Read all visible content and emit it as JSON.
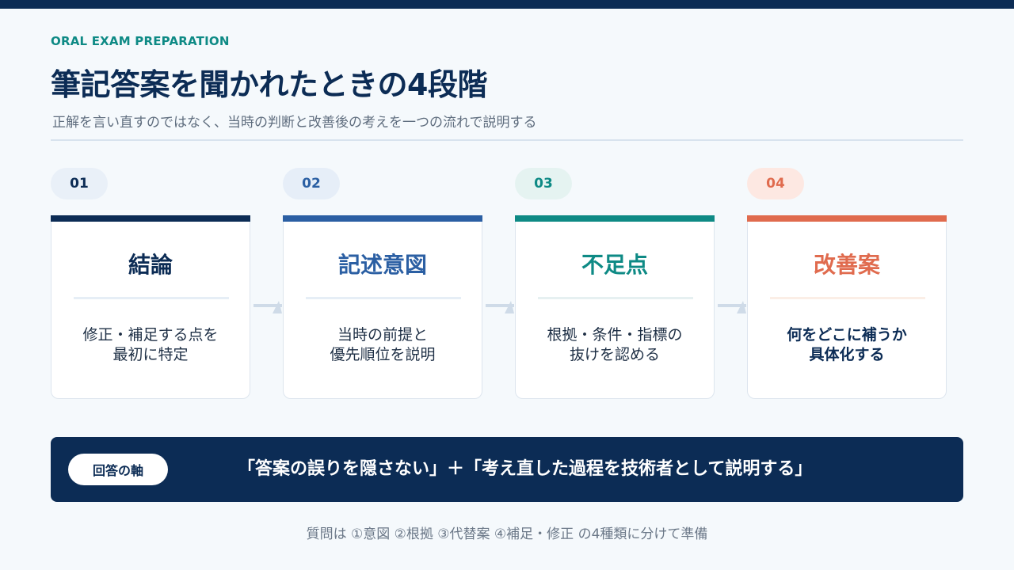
{
  "header": {
    "eyebrow": "ORAL EXAM PREPARATION",
    "title": "筆記答案を聞かれたときの4段階",
    "subtitle": "正解を言い直すのではなく、当時の判断と改善後の考えを一つの流れで説明する"
  },
  "steps": [
    {
      "number": "01",
      "title": "結論",
      "body_line1": "修正・補足する点を",
      "body_line2": "最初に特定",
      "accent": "#0c2c55",
      "badge_bg": "#e9f0f8",
      "line_color": "#e6eef6"
    },
    {
      "number": "02",
      "title": "記述意図",
      "body_line1": "当時の前提と",
      "body_line2": "優先順位を説明",
      "accent": "#2b5fa3",
      "badge_bg": "#e6eef8",
      "line_color": "#e6eef6"
    },
    {
      "number": "03",
      "title": "不足点",
      "body_line1": "根拠・条件・指標の",
      "body_line2": "抜けを認める",
      "accent": "#0e8a85",
      "badge_bg": "#e5f3f1",
      "line_color": "#e6f0f1"
    },
    {
      "number": "04",
      "title": "改善案",
      "body_line1": "何をどこに補うか",
      "body_line2": "具体化する",
      "accent": "#e06b4e",
      "badge_bg": "#fde8e2",
      "line_color": "#fbeee6"
    }
  ],
  "banner": {
    "pill_label": "回答の軸",
    "text": "「答案の誤りを隠さない」＋「考え直した過程を技術者として説明する」"
  },
  "footnote": "質問は ①意図 ②根拠 ③代替案 ④補足・修正 の4種類に分けて準備"
}
